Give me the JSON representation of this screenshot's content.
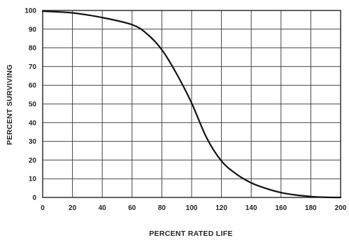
{
  "chart_data": {
    "type": "line",
    "title": "",
    "xlabel": "PERCENT RATED LIFE",
    "ylabel": "PERCENT SURVIVING",
    "xlim": [
      0,
      200
    ],
    "ylim": [
      0,
      100
    ],
    "x_ticks": [
      0,
      20,
      40,
      60,
      80,
      100,
      120,
      140,
      160,
      180,
      200
    ],
    "y_ticks": [
      0,
      10,
      20,
      30,
      40,
      50,
      60,
      70,
      80,
      90,
      100
    ],
    "x_tick_labels": [
      "0",
      "20",
      "40",
      "60",
      "80",
      "100",
      "120",
      "140",
      "160",
      "180",
      "200"
    ],
    "y_tick_labels": [
      "0",
      "10",
      "20",
      "30",
      "40",
      "50",
      "60",
      "70",
      "80",
      "90",
      "100"
    ],
    "grid": true,
    "legend": "none",
    "line_color": "#111111",
    "grid_color": "#444444",
    "series": [
      {
        "x": [
          0,
          20,
          40,
          60,
          70,
          80,
          90,
          100,
          110,
          120,
          130,
          140,
          150,
          160,
          170,
          180,
          190,
          200
        ],
        "y": [
          99.6,
          98.7,
          96.2,
          92.4,
          87.5,
          79,
          66,
          50.5,
          32,
          19.5,
          12.5,
          7.8,
          4.8,
          2.6,
          1.3,
          0.5,
          0.1,
          0
        ]
      }
    ]
  }
}
